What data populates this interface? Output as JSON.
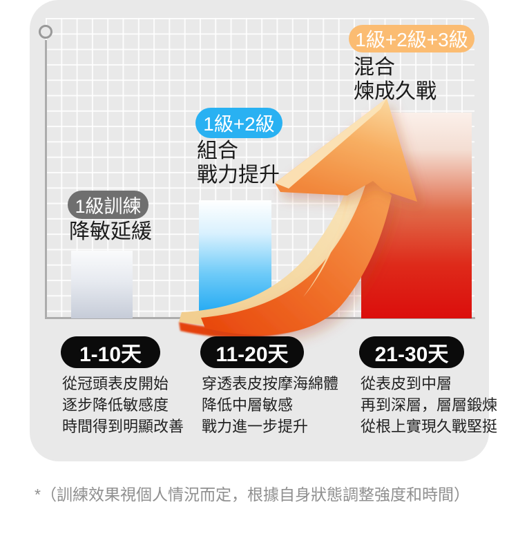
{
  "chart_data": {
    "type": "bar",
    "categories": [
      "1-10天",
      "11-20天",
      "21-30天"
    ],
    "values": [
      22.5,
      39.3,
      68.5
    ],
    "values_unit": "percent-of-plot-height (no numeric axis shown in image)",
    "title": "",
    "xlabel": "",
    "ylabel": "",
    "ylim": [
      0,
      100
    ],
    "grid": "on",
    "legend": "none",
    "bar_styles": [
      "silver-gradient",
      "blue-gradient",
      "red-gradient"
    ]
  },
  "stages": [
    {
      "badge": "1級訓練",
      "badge_color": "#6F6F6F",
      "label_lines": [
        "降敏延緩"
      ]
    },
    {
      "badge": "1級+2級",
      "badge_color": "#29B1F2",
      "label_lines": [
        "組合",
        "戰力提升"
      ]
    },
    {
      "badge": "1級+2級+3級",
      "badge_color": "#FBBC72",
      "label_lines": [
        "混合",
        "煉成久戰"
      ]
    }
  ],
  "timeline": [
    {
      "period": "1-10天",
      "lines": [
        "從冠頭表皮開始",
        "逐步降低敏感度",
        "時間得到明顯改善"
      ]
    },
    {
      "period": "11-20天",
      "lines": [
        "穿透表皮按摩海綿體",
        "降低中層敏感",
        "戰力進一步提升"
      ]
    },
    {
      "period": "21-30天",
      "lines": [
        "從表皮到中層",
        "再到深層，層層鍛煉",
        "從根上實現久戰堅挺"
      ]
    }
  ],
  "footnote": "*（訓練效果視個人情況而定，根據自身狀態調整強度和時間）",
  "icons": {
    "growth_arrow": "curved-3d-up-right-arrow",
    "axis_origin": "circle-outline-marker"
  },
  "colors": {
    "card_bg": "#E9E9E9",
    "grid_line": "#FFFFFF",
    "axis": "#ACACAC",
    "badge_gray": "#6F6F6F",
    "badge_blue": "#29B1F2",
    "badge_orange": "#FBBC72",
    "day_pill": "#0B0B0B",
    "bar_silver": "#C6CCD8",
    "bar_blue": "#29A9EF",
    "bar_red": "#DB0E0C",
    "arrow_orange": "#F0722B",
    "arrow_cream": "#F7DCA8",
    "arrow_red_edge": "#E5430C",
    "text": "#1B1B1B",
    "footnote_text": "#8F8F8F"
  }
}
